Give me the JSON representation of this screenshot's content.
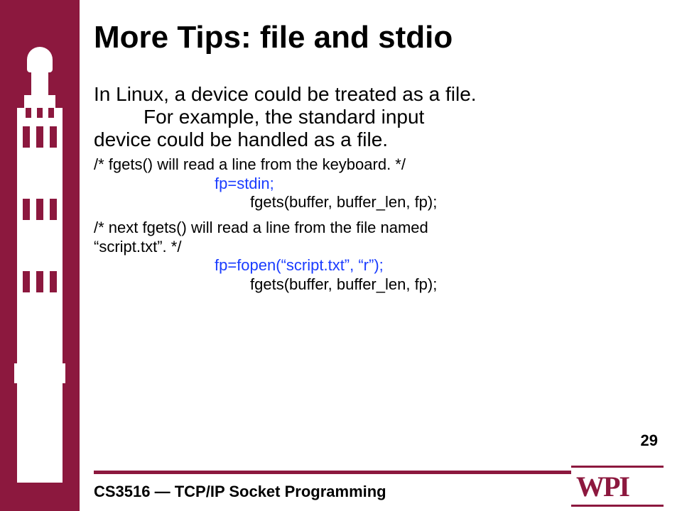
{
  "colors": {
    "brand": "#8c183e",
    "code_highlight": "#1a3cff",
    "text": "#000000",
    "background": "#ffffff"
  },
  "title": "More Tips: file and stdio",
  "bullet_lead": "In Linux, a device could be treated as a file.",
  "example_line1": "For example, the standard input",
  "example_line2": "device could be handled as a file.",
  "code1_comment": "/* fgets() will read a line from the keyboard. */",
  "code1_line1": "fp=stdin;",
  "code1_line2": "fgets(buffer, buffer_len, fp);",
  "code2_comment_l1": "/* next  fgets() will read a line from the file named",
  "code2_comment_l2": "“script.txt”. */",
  "code2_line1": "fp=fopen(“script.txt”, “r”);",
  "code2_line2": "fgets(buffer, buffer_len, fp);",
  "page_number": "29",
  "footer": "CS3516 — TCP/IP Socket Programming",
  "logo_text": "WPI"
}
